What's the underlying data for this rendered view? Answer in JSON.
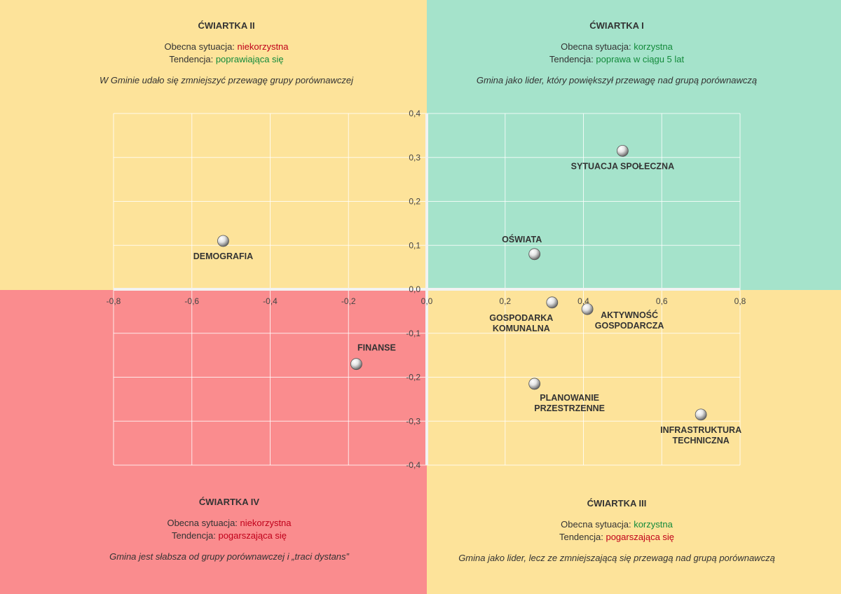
{
  "quadrants": {
    "q1": {
      "title": "ĆWIARTKA I",
      "situation_label": "Obecna sytuacja: ",
      "situation_value": "korzystna",
      "trend_label": "Tendencja: ",
      "trend_value": "poprawa w ciągu 5 lat",
      "description": "Gmina jako lider, który powiększył przewagę nad grupą porównawczą"
    },
    "q2": {
      "title": "ĆWIARTKA II",
      "situation_label": "Obecna sytuacja: ",
      "situation_value": "niekorzystna",
      "trend_label": "Tendencja: ",
      "trend_value": "poprawiająca się",
      "description": "W Gminie udało się zmniejszyć przewagę grupy porównawczej"
    },
    "q3": {
      "title": "ĆWIARTKA III",
      "situation_label": "Obecna sytuacja: ",
      "situation_value": "korzystna",
      "trend_label": "Tendencja: ",
      "trend_value": "pogarszająca się",
      "description": "Gmina jako lider, lecz ze zmniejszającą się przewagą nad grupą porównawczą"
    },
    "q4": {
      "title": "ĆWIARTKA IV",
      "situation_label": "Obecna sytuacja: ",
      "situation_value": "niekorzystna",
      "trend_label": "Tendencja: ",
      "trend_value": "pogarszająca się",
      "description": "Gmina jest słabsza od grupy porównawczej i „traci dystans”"
    }
  },
  "colors": {
    "favorable_improving": "#a5e3cb",
    "mixed": "#fde39a",
    "unfavorable_worsening": "#fa8c8e",
    "negative_text": "#c0001a",
    "positive_text": "#138a3b"
  },
  "chart_data": {
    "type": "scatter",
    "xlim": [
      -0.8,
      0.8
    ],
    "ylim": [
      -0.4,
      0.4
    ],
    "x_ticks": [
      "-0,8",
      "-0,6",
      "-0,4",
      "-0,2",
      "0,0",
      "0,2",
      "0,4",
      "0,6",
      "0,8"
    ],
    "y_ticks": [
      "0,4",
      "0,3",
      "0,2",
      "0,1",
      "0,0",
      "-0,1",
      "-0,2",
      "-0,3",
      "-0,4"
    ],
    "grid": true,
    "points": [
      {
        "label": [
          "SYTUACJA SPOŁECZNA"
        ],
        "x": 0.5,
        "y": 0.315,
        "label_pos": "below"
      },
      {
        "label": [
          "OŚWIATA"
        ],
        "x": 0.275,
        "y": 0.08,
        "label_pos": "above-left"
      },
      {
        "label": [
          "DEMOGRAFIA"
        ],
        "x": -0.52,
        "y": 0.11,
        "label_pos": "below"
      },
      {
        "label": [
          "GOSPODARKA",
          "KOMUNALNA"
        ],
        "x": 0.32,
        "y": -0.03,
        "label_pos": "below-left"
      },
      {
        "label": [
          "AKTYWNOŚĆ",
          "GOSPODARCZA"
        ],
        "x": 0.41,
        "y": -0.045,
        "label_pos": "right"
      },
      {
        "label": [
          "FINANSE"
        ],
        "x": -0.18,
        "y": -0.17,
        "label_pos": "above-right"
      },
      {
        "label": [
          "PLANOWANIE",
          "PRZESTRZENNE"
        ],
        "x": 0.275,
        "y": -0.215,
        "label_pos": "below-right"
      },
      {
        "label": [
          "INFRASTRUKTURA",
          "TECHNICZNA"
        ],
        "x": 0.7,
        "y": -0.285,
        "label_pos": "below"
      }
    ]
  }
}
